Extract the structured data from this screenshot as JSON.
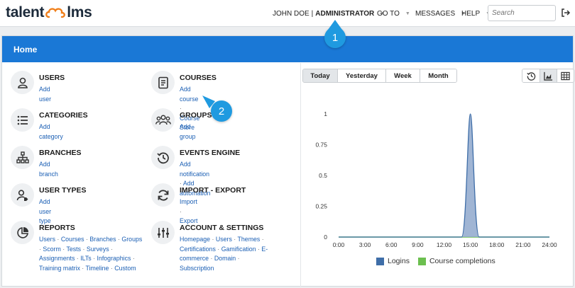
{
  "logo": {
    "part1": "talent",
    "part2": "lms"
  },
  "topnav": {
    "user": "JOHN DOE",
    "role": "ADMINISTRATOR",
    "goto": "GO TO",
    "messages": "MESSAGES",
    "help": "HELP"
  },
  "search": {
    "placeholder": "Search"
  },
  "panel": {
    "title": "Home"
  },
  "left_items": [
    {
      "title": "USERS",
      "links": [
        "Add user"
      ]
    },
    {
      "title": "CATEGORIES",
      "links": [
        "Add category"
      ]
    },
    {
      "title": "BRANCHES",
      "links": [
        "Add branch"
      ]
    },
    {
      "title": "USER TYPES",
      "links": [
        "Add user type"
      ]
    },
    {
      "title": "REPORTS",
      "links": [
        "Users",
        "Courses",
        "Branches",
        "Groups",
        "Scorm",
        "Tests",
        "Surveys",
        "Assignments",
        "ILTs",
        "Infographics",
        "Training matrix",
        "Timeline",
        "Custom"
      ]
    }
  ],
  "right_items": [
    {
      "title": "COURSES",
      "links": [
        "Add course",
        "Course Store"
      ]
    },
    {
      "title": "GROUPS",
      "links": [
        "Add group"
      ]
    },
    {
      "title": "EVENTS ENGINE",
      "links": [
        "Add notification",
        "Add automation"
      ]
    },
    {
      "title": "IMPORT - EXPORT",
      "links": [
        "Import",
        "Export"
      ]
    },
    {
      "title": "ACCOUNT & SETTINGS",
      "links": [
        "Homepage",
        "Users",
        "Themes",
        "Certifications",
        "Gamification",
        "E-commerce",
        "Domain",
        "Subscription"
      ]
    }
  ],
  "tabs": [
    "Today",
    "Yesterday",
    "Week",
    "Month"
  ],
  "active_tab": "Today",
  "views": [
    "history-icon",
    "area-chart-icon",
    "table-grid-icon"
  ],
  "markers": [
    "1",
    "2"
  ],
  "colors": {
    "brand": "#1a78d6",
    "logins": "#3f6ea8",
    "completions": "#6cbf4f",
    "marker": "#1f9ae0"
  },
  "chart_data": {
    "type": "area",
    "x_ticks": [
      "0:00",
      "3:00",
      "6:00",
      "9:00",
      "12:00",
      "15:00",
      "18:00",
      "21:00",
      "24:00"
    ],
    "y_ticks": [
      "0",
      "0.25",
      "0.5",
      "0.75",
      "1"
    ],
    "ylim": [
      0,
      1
    ],
    "xlim": [
      0,
      24
    ],
    "series": [
      {
        "name": "Logins",
        "x": [
          0,
          14,
          15,
          16,
          24
        ],
        "values": [
          0,
          0,
          1,
          0,
          0
        ]
      },
      {
        "name": "Course completions",
        "x": [
          0,
          24
        ],
        "values": [
          0,
          0
        ]
      }
    ],
    "legend": "bottom",
    "grid": false
  }
}
